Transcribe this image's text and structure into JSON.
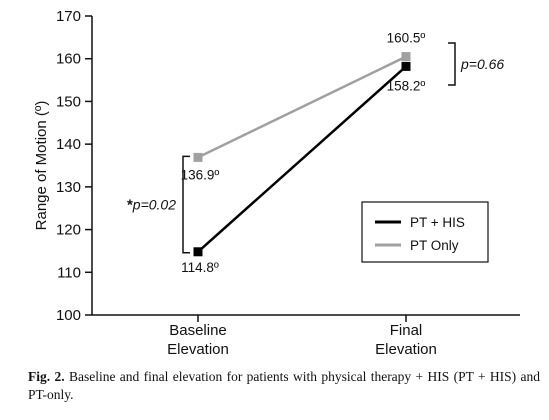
{
  "chart_data": {
    "type": "line",
    "title": "",
    "xlabel": "",
    "ylabel": "Range of Motion (º)",
    "ylim": [
      100,
      170
    ],
    "yticks": [
      100,
      110,
      120,
      130,
      140,
      150,
      160,
      170
    ],
    "categories": [
      [
        "Baseline",
        "Elevation"
      ],
      [
        "Final",
        "Elevation"
      ]
    ],
    "series": [
      {
        "name": "PT + HIS",
        "color": "#000000",
        "values": [
          114.8,
          158.2
        ],
        "labels": [
          "114.8º",
          "158.2º"
        ]
      },
      {
        "name": "PT Only",
        "color": "#a0a0a0",
        "values": [
          136.9,
          160.5
        ],
        "labels": [
          "136.9º",
          "160.5º"
        ]
      }
    ],
    "annotations": [
      {
        "text": "*p=0.02",
        "category": 0,
        "from": 114.8,
        "to": 136.9,
        "side": "left"
      },
      {
        "text": "p=0.66",
        "category": 1,
        "from": 158.2,
        "to": 160.5,
        "side": "right"
      }
    ],
    "legend": {
      "position": "bottom-right"
    },
    "grid": false
  },
  "caption": {
    "label": "Fig. 2.",
    "text": "Baseline and final elevation for patients with physical therapy + HIS (PT + HIS) and PT-only."
  }
}
